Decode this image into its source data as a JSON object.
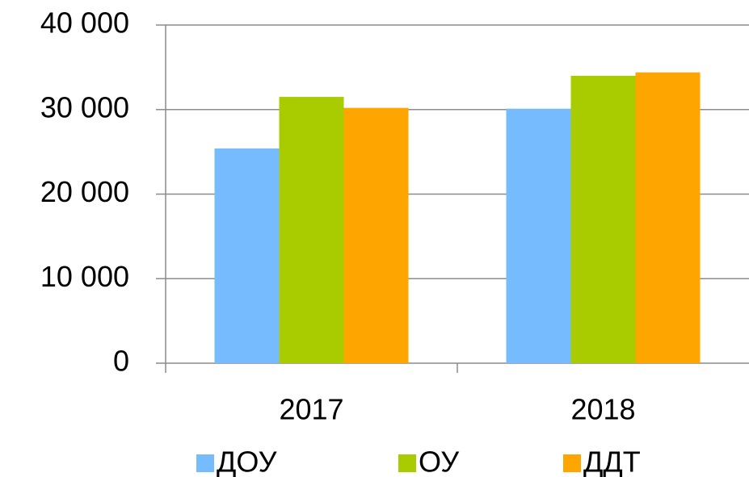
{
  "chart_data": {
    "type": "bar",
    "categories": [
      "2017",
      "2018"
    ],
    "series": [
      {
        "name": "ДОУ",
        "color": "#77bbff",
        "values": [
          25400,
          30100
        ]
      },
      {
        "name": "ОУ",
        "color": "#a8cc00",
        "values": [
          31500,
          34000
        ]
      },
      {
        "name": "ДДТ",
        "color": "#ffa500",
        "values": [
          30200,
          34400
        ]
      }
    ],
    "ylim": [
      0,
      40000
    ],
    "yticks": [
      0,
      {
        "value": 10000,
        "label": "10 000"
      },
      {
        "value": 20000,
        "label": "20 000"
      },
      {
        "value": 30000,
        "label": "30 000"
      },
      {
        "value": 40000,
        "label": "40 000"
      }
    ],
    "grid": true,
    "legend": "bottom"
  }
}
